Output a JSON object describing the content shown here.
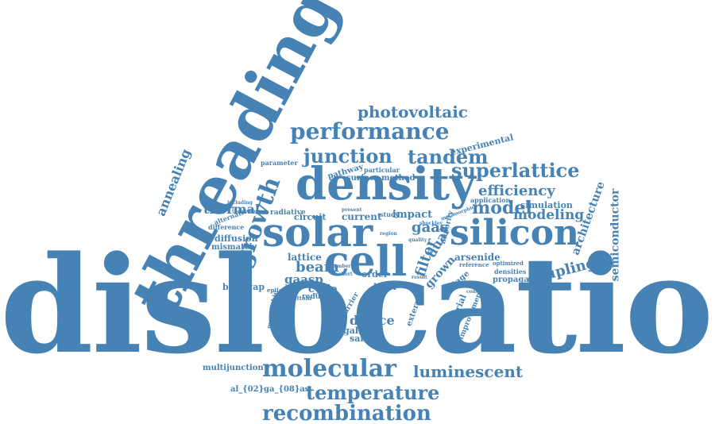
{
  "color": "#4682b4",
  "words": [
    {
      "text": "dislocation"
    },
    {
      "text": "threading"
    },
    {
      "text": "density"
    },
    {
      "text": "solar"
    },
    {
      "text": "silicon"
    },
    {
      "text": "cell"
    },
    {
      "text": "growth"
    },
    {
      "text": "performance"
    },
    {
      "text": "junction"
    },
    {
      "text": "tandem"
    },
    {
      "text": "photovoltaic"
    },
    {
      "text": "superlattice"
    },
    {
      "text": "efficiency"
    },
    {
      "text": "model"
    },
    {
      "text": "modeling"
    },
    {
      "text": "molecular"
    },
    {
      "text": "luminescent"
    },
    {
      "text": "temperature"
    },
    {
      "text": "recombination"
    },
    {
      "text": "annealing"
    },
    {
      "text": "thermal"
    },
    {
      "text": "beam"
    },
    {
      "text": "gaasp"
    },
    {
      "text": "gaas"
    },
    {
      "text": "filter"
    },
    {
      "text": "dual"
    },
    {
      "text": "coupling"
    },
    {
      "text": "architecture"
    },
    {
      "text": "semiconductor"
    },
    {
      "text": "device"
    },
    {
      "text": "lattice"
    },
    {
      "text": "arsenide"
    },
    {
      "text": "grown"
    },
    {
      "text": "experimental"
    },
    {
      "text": "simulation"
    },
    {
      "text": "application"
    },
    {
      "text": "impact"
    },
    {
      "text": "current"
    },
    {
      "text": "circuit"
    },
    {
      "text": "radiative"
    },
    {
      "text": "diffusion"
    },
    {
      "text": "mismatch"
    },
    {
      "text": "alternative"
    },
    {
      "text": "difference"
    },
    {
      "text": "bandgap"
    },
    {
      "text": "gallium"
    },
    {
      "text": "sample"
    },
    {
      "text": "layer"
    },
    {
      "text": "cycle"
    },
    {
      "text": "order"
    },
    {
      "text": "reduce"
    },
    {
      "text": "multijunction"
    },
    {
      "text": "al_{02}ga_{08}as"
    },
    {
      "text": "propagate"
    },
    {
      "text": "densities"
    },
    {
      "text": "optimized"
    },
    {
      "text": "reference"
    },
    {
      "text": "voltage"
    },
    {
      "text": "material"
    },
    {
      "text": "improvement"
    },
    {
      "text": "external"
    },
    {
      "text": "carrier"
    },
    {
      "text": "measurement"
    },
    {
      "text": "monolithic"
    },
    {
      "text": "epilayers"
    },
    {
      "text": "bottom"
    },
    {
      "text": "surface"
    },
    {
      "text": "pathway"
    },
    {
      "text": "method"
    },
    {
      "text": "particular"
    },
    {
      "text": "parameter"
    },
    {
      "text": "including"
    },
    {
      "text": "present"
    },
    {
      "text": "study"
    },
    {
      "text": "minority"
    },
    {
      "text": "quality"
    },
    {
      "text": "shockley"
    },
    {
      "text": "metamorphic"
    },
    {
      "text": "region"
    },
    {
      "text": "condition"
    },
    {
      "text": "result"
    },
    {
      "text": "short"
    },
    {
      "text": "lambert"
    },
    {
      "text": "technology"
    }
  ]
}
